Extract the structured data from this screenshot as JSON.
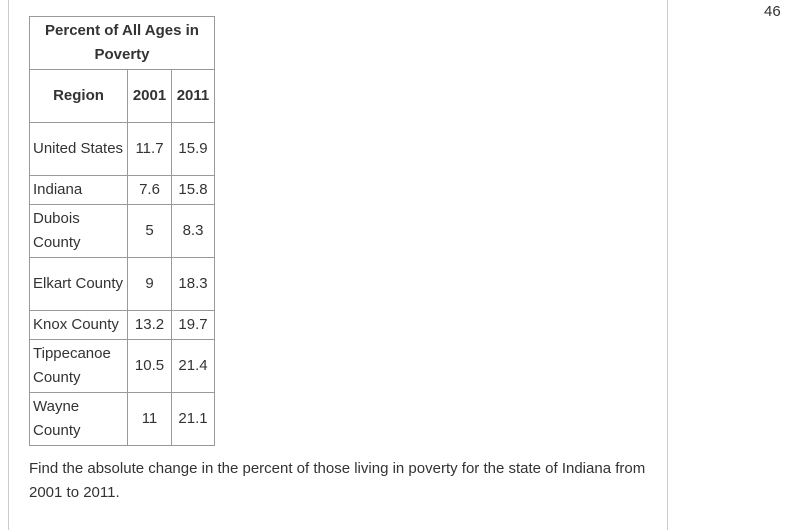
{
  "page_number": 46,
  "table": {
    "title": "Percent of All Ages in Poverty",
    "header": [
      "Region",
      2001,
      2011
    ],
    "rows": [
      [
        "United States",
        11.7,
        15.9
      ],
      [
        "Indiana",
        7.6,
        15.8
      ],
      [
        "Dubois County",
        5,
        8.3
      ],
      [
        "Elkart County",
        9,
        18.3
      ],
      [
        "Knox County",
        13.2,
        19.7
      ],
      [
        "Tippecanoe County",
        10.5,
        21.4
      ],
      [
        "Wayne County",
        11,
        21.1
      ]
    ]
  },
  "question": "Find the absolute change in the percent of those living in poverty for the state of Indiana from 2001 to 2011."
}
